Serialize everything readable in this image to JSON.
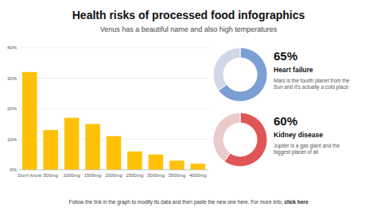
{
  "chart_data": [
    {
      "type": "bar",
      "title": "Health risks of processed food infographics",
      "subtitle": "Venus has a beautiful name and also high temperatures",
      "categories": [
        "Don't know",
        "500mg",
        "1000mg",
        "1500mg",
        "2000mg",
        "2500mg",
        "3000mg",
        "3500mg",
        "4000mg"
      ],
      "values": [
        32,
        13,
        17,
        15,
        11,
        6,
        5,
        3,
        2
      ],
      "color": "#FFC107",
      "ylim": [
        0,
        40
      ],
      "yticks": [
        {
          "value": 0,
          "label": "0%"
        },
        {
          "value": 10,
          "label": "10%"
        },
        {
          "value": 20,
          "label": "20%"
        },
        {
          "value": 30,
          "label": "30%"
        },
        {
          "value": 40,
          "label": "40%"
        }
      ],
      "grid": true,
      "annotations": [
        "Follow the link in the graph to modify its data and then paste the new one here. For more info, ",
        "click here"
      ]
    },
    {
      "type": "donut",
      "title": "Heart failure",
      "values": [
        65,
        35
      ],
      "colors": [
        "#7B9FD4",
        "#D0D8E8"
      ],
      "annotations": [
        "65%",
        "Mars is the fourth planet from the\nSun and it's actually a cold place"
      ]
    },
    {
      "type": "donut",
      "title": "Kidney disease",
      "values": [
        60,
        40
      ],
      "colors": [
        "#E05555",
        "#EACACA"
      ],
      "annotations": [
        "60%",
        "Jupiter is a gas giant and the\nbiggest planet of all"
      ]
    }
  ]
}
